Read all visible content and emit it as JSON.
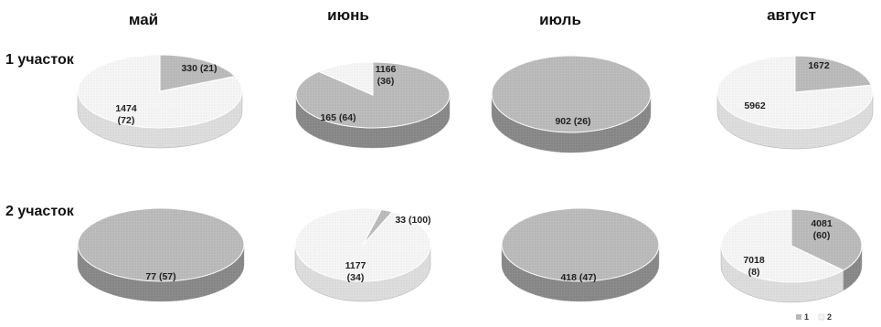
{
  "columns": [
    "май",
    "июнь",
    "июль",
    "август"
  ],
  "rows": [
    "1 участок",
    "2 участок"
  ],
  "legend": [
    "1",
    "2"
  ],
  "colors": {
    "series1": "#b8b8b8",
    "series2": "#f3f3f3"
  },
  "chart_data": {
    "type": "pie",
    "title": "",
    "series_names": [
      "1",
      "2"
    ],
    "pies": [
      {
        "row": "1 участок",
        "month": "май",
        "slices": [
          {
            "series": "1",
            "value": 330,
            "label": "330 (21)"
          },
          {
            "series": "2",
            "value": 1474,
            "label": "1474 (72)"
          }
        ]
      },
      {
        "row": "1 участок",
        "month": "июнь",
        "slices": [
          {
            "series": "1",
            "value": 1166,
            "label": "1166 (36)"
          },
          {
            "series": "2",
            "value": 165,
            "label": "165 (64)"
          }
        ]
      },
      {
        "row": "1 участок",
        "month": "июль",
        "slices": [
          {
            "series": "1",
            "value": 902,
            "label": "902 (26)"
          }
        ]
      },
      {
        "row": "1 участок",
        "month": "август",
        "slices": [
          {
            "series": "1",
            "value": 1672,
            "label": "1672"
          },
          {
            "series": "2",
            "value": 5962,
            "label": "5962"
          }
        ]
      },
      {
        "row": "2 участок",
        "month": "май",
        "slices": [
          {
            "series": "1",
            "value": 77,
            "label": "77 (57)"
          }
        ]
      },
      {
        "row": "2 участок",
        "month": "июнь",
        "slices": [
          {
            "series": "1",
            "value": 33,
            "label": "33 (100)"
          },
          {
            "series": "2",
            "value": 1177,
            "label": "1177 (34)"
          }
        ]
      },
      {
        "row": "2 участок",
        "month": "июль",
        "slices": [
          {
            "series": "1",
            "value": 418,
            "label": "418 (47)"
          }
        ]
      },
      {
        "row": "2 участок",
        "month": "август",
        "slices": [
          {
            "series": "1",
            "value": 4081,
            "label": "4081 (60)"
          },
          {
            "series": "2",
            "value": 7018,
            "label": "7018 (8)"
          }
        ]
      }
    ],
    "legend_position": "bottom-right"
  }
}
